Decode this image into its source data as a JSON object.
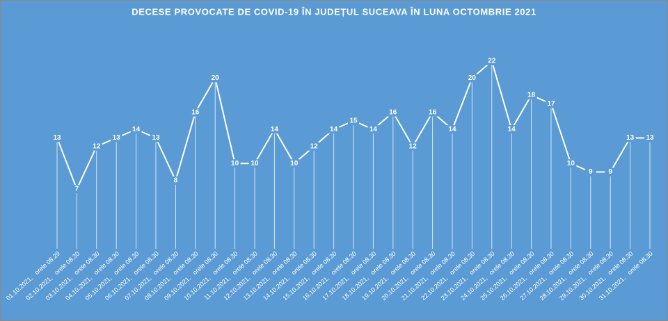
{
  "chart_data": {
    "type": "line",
    "title": "DECESE PROVOCATE DE COVID-19 ÎN JUDEȚUL SUCEAVA ÎN LUNA OCTOMBRIE 2021",
    "categories": [
      "01.10.2021,   orele 08.29",
      "02.10.2021,   orele 08.30",
      "03.10.2021,   orele 08.30",
      "04.10.2021,   orele 08.30",
      "05.10.2021,   orele 08.30",
      "06.10.2021,   orele 08.30",
      "07.10.2021,   orele 08.30",
      "08.10.2021,   orele 08.30",
      "09.10.2021,   orele 08.30",
      "10.10.2021,   orele 08.30",
      "11.10.2021,   orele 08.30",
      "12.10.2021,   orele 08.30",
      "13.10.2021,   orele 08.30",
      "14.10.2021,   orele 08.30",
      "15.10.2021,   orele 08.30",
      "16.10.2021,   orele 08.30",
      "17.10.2021,   orele 08.30",
      "18.10.2021,   orele 08.30",
      "19.10.2021,   orele 08.30",
      "20.10.2021,   orele 08.30",
      "21.10.2021,   orele 08.30",
      "22.10.2021,   orele 08.30",
      "23.10.2021,   orele 08.30",
      "24.10.2021,   orele 08.30",
      "25.10.2021,   orele 08.30",
      "26.10.2021,   orele 08.30",
      "27.10.2021,   orele 08.30",
      "28.10.2021,   orele 08.30",
      "29.10.2021,   orele 08.30",
      "30.10.2021,   orele 08.30",
      "31.10.2021,   orele 08.30"
    ],
    "values": [
      13,
      7,
      12,
      13,
      14,
      13,
      8,
      16,
      20,
      10,
      10,
      14,
      10,
      12,
      14,
      15,
      14,
      16,
      12,
      16,
      14,
      20,
      22,
      14,
      18,
      17,
      10,
      9,
      9,
      13,
      13
    ],
    "color": "#ffffff"
  }
}
